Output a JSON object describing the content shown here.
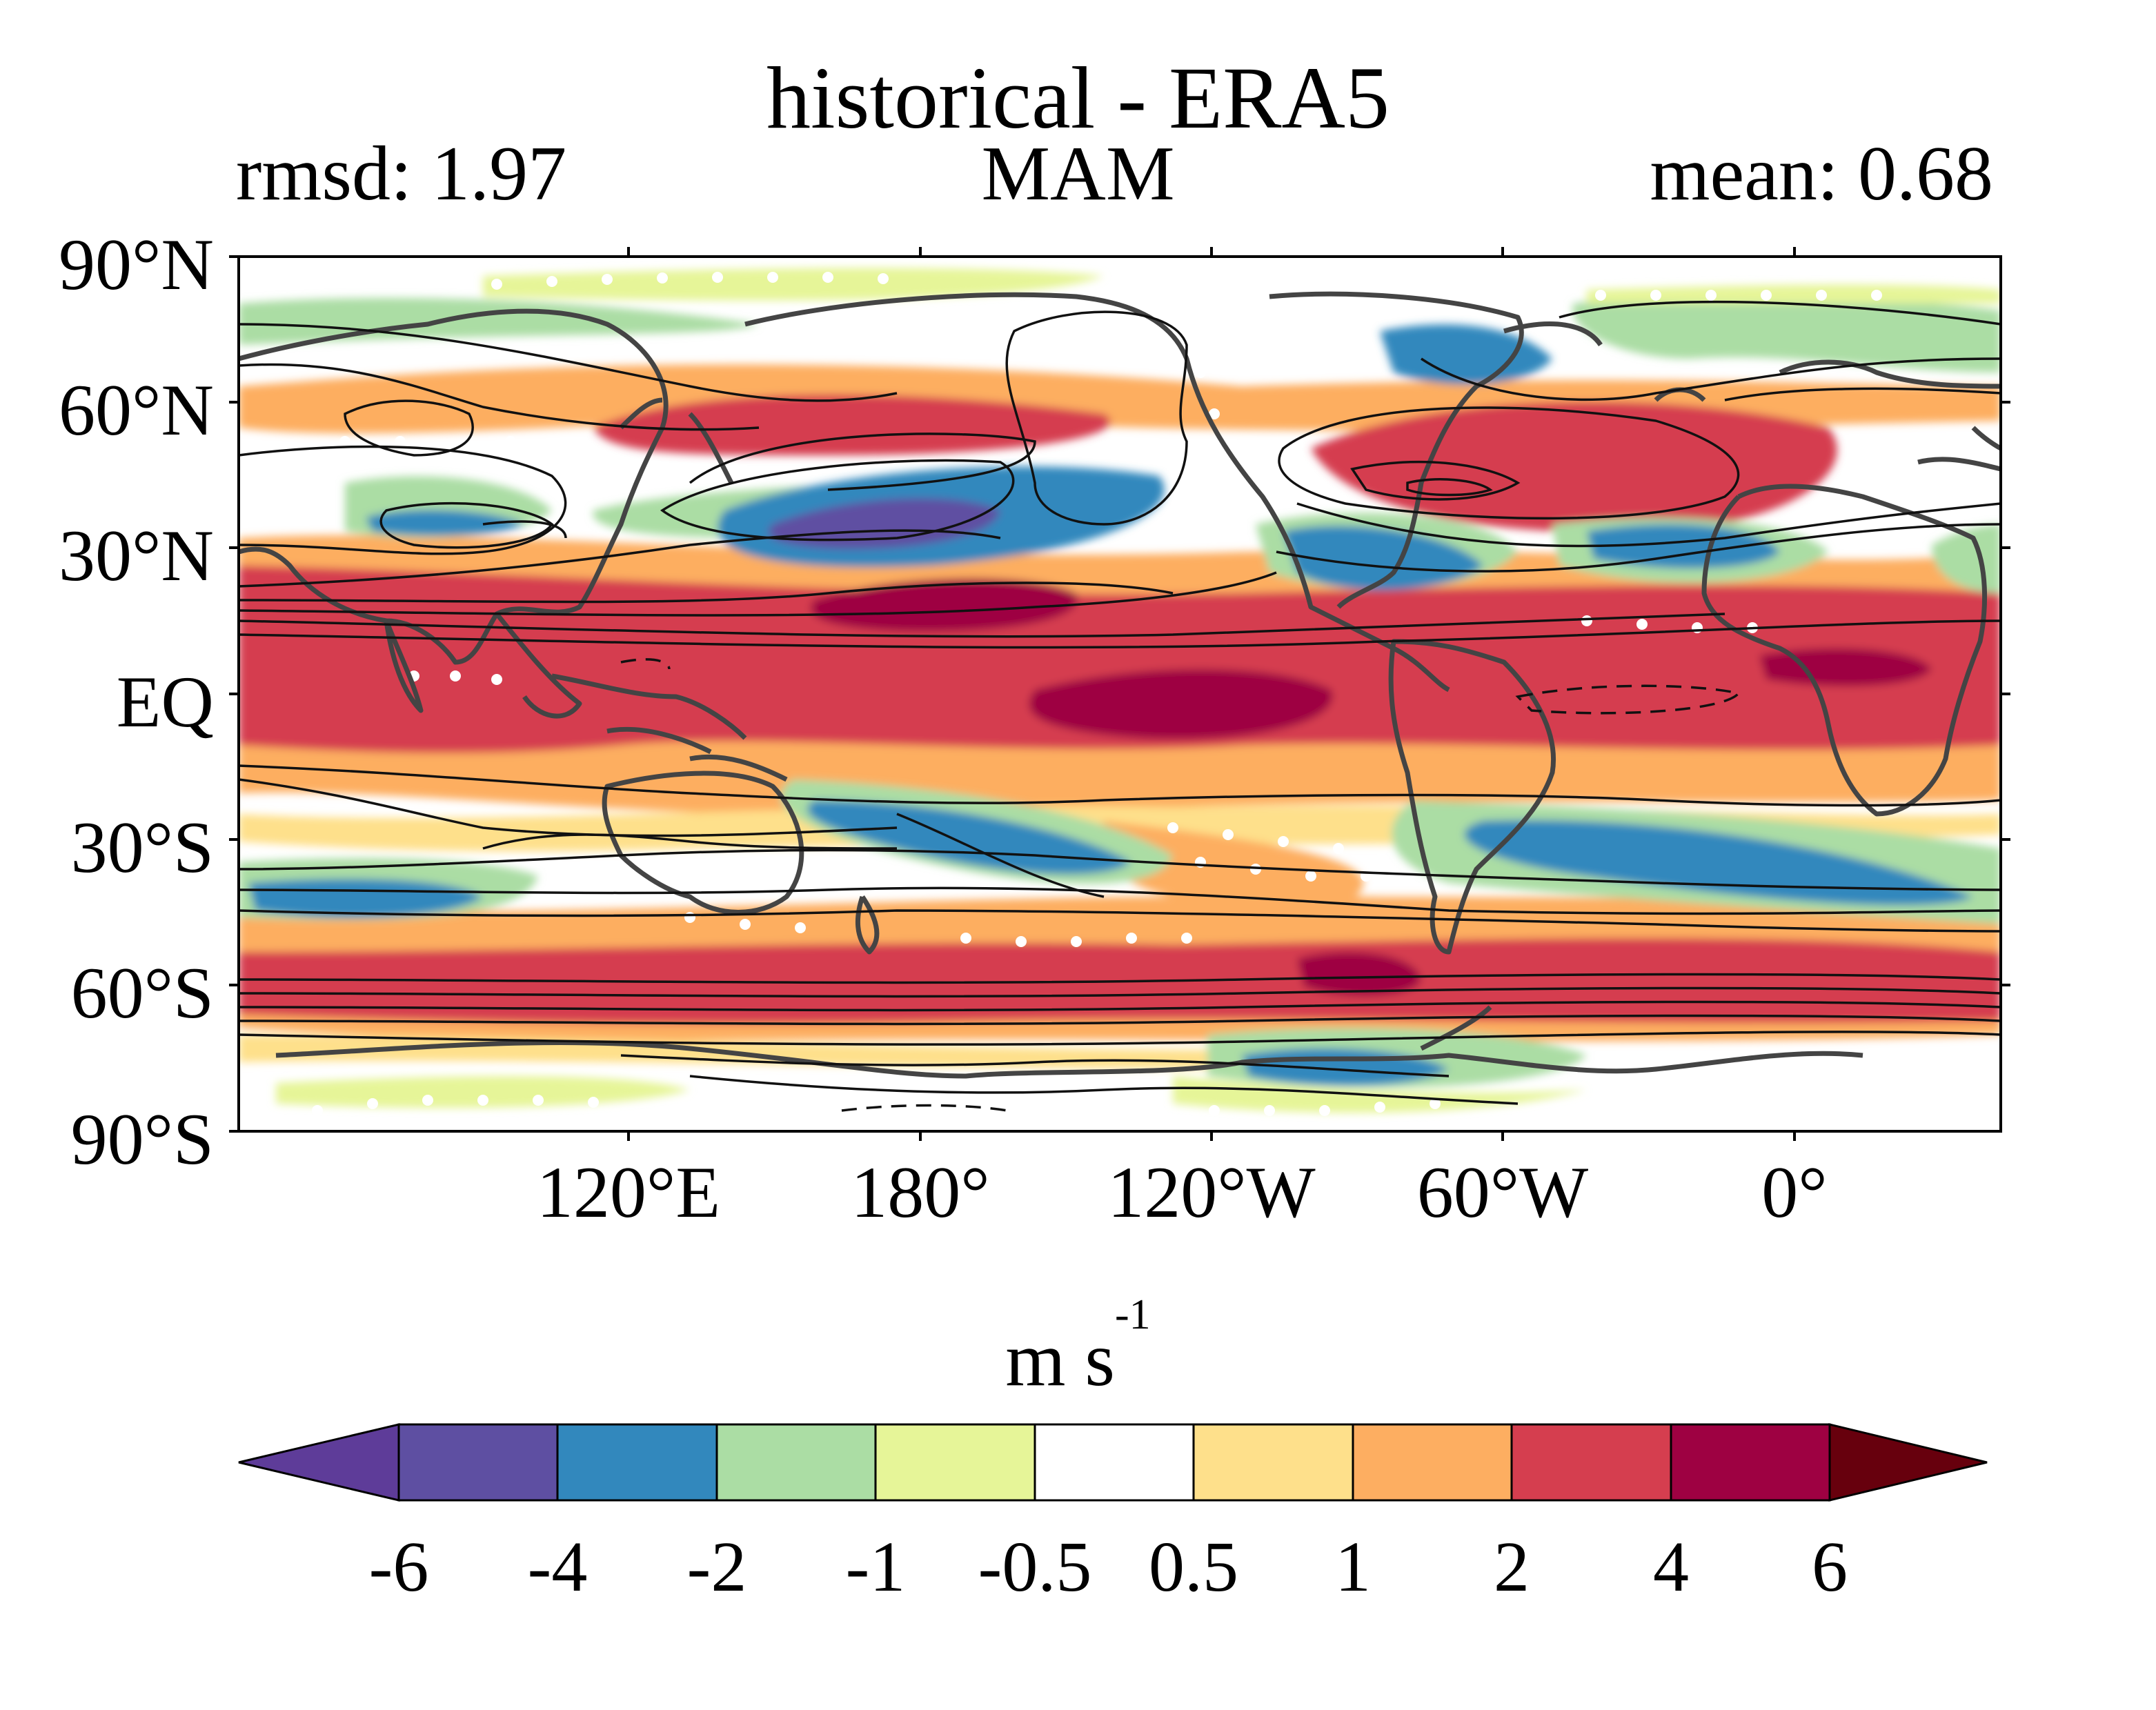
{
  "title": "historical - ERA5",
  "stats": {
    "rmsd": "rmsd: 1.97",
    "season": "MAM",
    "mean": "mean: 0.68"
  },
  "map": {
    "projection": "equirectangular",
    "longitude_range": [
      30,
      390
    ],
    "latitude_range": [
      -90,
      90
    ],
    "lat_labels": [
      "90°N",
      "60°N",
      "30°N",
      "EQ",
      "30°S",
      "60°S",
      "90°S"
    ],
    "lon_labels": [
      "120°E",
      "180°",
      "120°W",
      "60°W",
      "0°"
    ],
    "filled_field": "zonal wind difference (model minus reanalysis)",
    "contour_lines": "climatology, solid positive, dashed negative",
    "stippling": "white dots mark grid points of low significance",
    "coastline_color": "#444444"
  },
  "colorbar": {
    "units_main": "m s",
    "units_exp": "-1",
    "levels": [
      "-6",
      "-4",
      "-2",
      "-1",
      "-0.5",
      "0.5",
      "1",
      "2",
      "4",
      "6"
    ],
    "colors": [
      "#5e3c99",
      "#5e4fa2",
      "#3288bd",
      "#abdda4",
      "#e6f598",
      "#ffffff",
      "#fee08b",
      "#fdae61",
      "#d53e4f",
      "#9e0142",
      "#67000d"
    ],
    "extend": "both"
  }
}
